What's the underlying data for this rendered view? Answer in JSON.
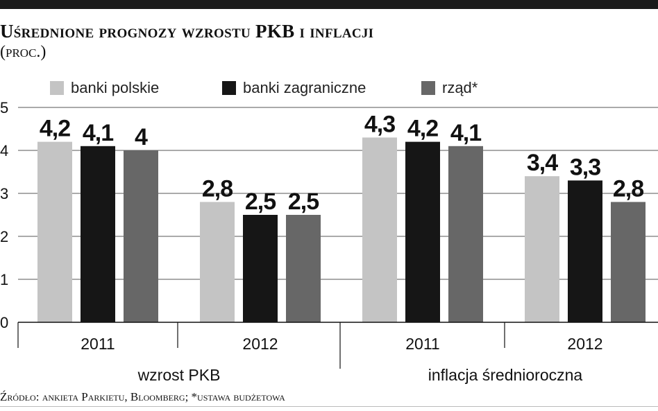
{
  "chart_data": {
    "type": "bar",
    "title": "Uśrednione prognozy wzrostu PKB i inflacji",
    "subtitle": "(proc.)",
    "source": "Źródło: ankieta Parkietu, Bloomberg; *ustawa budżetowa",
    "ylim": [
      0,
      5
    ],
    "yticks": [
      "0",
      "1",
      "2",
      "3",
      "4",
      "5"
    ],
    "grid": true,
    "legend_position": "top",
    "groups": [
      {
        "label": "wzrost PKB",
        "categories": [
          "2011",
          "2012"
        ]
      },
      {
        "label": "inflacja średnioroczna",
        "categories": [
          "2011",
          "2012"
        ]
      }
    ],
    "series": [
      {
        "name": "banki polskie",
        "color": "#c4c4c4",
        "values": [
          4.2,
          2.8,
          4.3,
          3.4
        ],
        "labels": [
          "4,2",
          "2,8",
          "4,3",
          "3,4"
        ]
      },
      {
        "name": "banki zagraniczne",
        "color": "#161616",
        "values": [
          4.1,
          2.5,
          4.2,
          3.3
        ],
        "labels": [
          "4,1",
          "2,5",
          "4,2",
          "3,3"
        ]
      },
      {
        "name": "rząd*",
        "color": "#676767",
        "values": [
          4,
          2.5,
          4.1,
          2.8
        ],
        "labels": [
          "4",
          "2,5",
          "4,1",
          "2,8"
        ]
      }
    ]
  }
}
